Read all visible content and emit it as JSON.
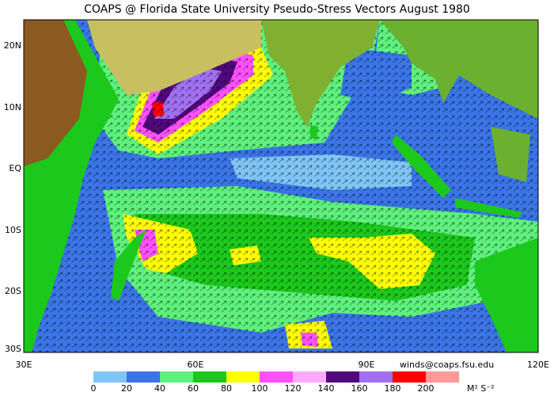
{
  "header": {
    "title": "COAPS @ Florida State University Pseudo-Stress Vectors  August 1980"
  },
  "lat_labels": [
    "20N",
    "10N",
    "EQ",
    "10S",
    "20S",
    "30S"
  ],
  "lon_labels": [
    "30E",
    "60E",
    "90E",
    "120E"
  ],
  "credit": "winds@coaps.fsu.edu",
  "colorbar": {
    "ticks": [
      0,
      20,
      40,
      60,
      80,
      100,
      120,
      140,
      160,
      180,
      200
    ],
    "colors": [
      "#80c4f6",
      "#3a74e6",
      "#5ef07c",
      "#1cc81c",
      "#ffff00",
      "#ff50ff",
      "#ffaaff",
      "#50087c",
      "#a070f0",
      "#ff0000",
      "#ff9898"
    ],
    "unit": "M² S⁻²"
  }
}
